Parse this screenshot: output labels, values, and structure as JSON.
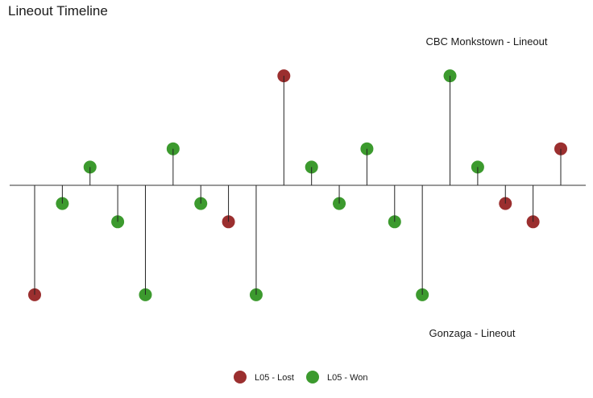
{
  "chart_data": {
    "type": "lollipop-timeline",
    "title": "Lineout Timeline",
    "annotations": {
      "top": "CBC Monkstown - Lineout",
      "bottom": "Gonzaga - Lineout"
    },
    "axis": {
      "visible_ticks": false,
      "grid": false,
      "ylim": [
        -3,
        3
      ]
    },
    "legend": {
      "placement": "bottom",
      "entries": [
        {
          "label": "L05 - Lost",
          "color": "#9b2f2f"
        },
        {
          "label": "L05 - Won",
          "color": "#3c9a2e"
        }
      ]
    },
    "colors": {
      "Lost": "#9b2f2f",
      "Won": "#3c9a2e"
    },
    "events": [
      {
        "team": "Gonzaga",
        "level": -3,
        "outcome": "Lost"
      },
      {
        "team": "Gonzaga",
        "level": -0.5,
        "outcome": "Won"
      },
      {
        "team": "CBC Monkstown",
        "level": 0.5,
        "outcome": "Won"
      },
      {
        "team": "Gonzaga",
        "level": -1,
        "outcome": "Won"
      },
      {
        "team": "Gonzaga",
        "level": -3,
        "outcome": "Won"
      },
      {
        "team": "CBC Monkstown",
        "level": 1,
        "outcome": "Won"
      },
      {
        "team": "Gonzaga",
        "level": -0.5,
        "outcome": "Won"
      },
      {
        "team": "Gonzaga",
        "level": -1,
        "outcome": "Lost"
      },
      {
        "team": "Gonzaga",
        "level": -3,
        "outcome": "Won"
      },
      {
        "team": "CBC Monkstown",
        "level": 3,
        "outcome": "Lost"
      },
      {
        "team": "CBC Monkstown",
        "level": 0.5,
        "outcome": "Won"
      },
      {
        "team": "Gonzaga",
        "level": -0.5,
        "outcome": "Won"
      },
      {
        "team": "CBC Monkstown",
        "level": 1,
        "outcome": "Won"
      },
      {
        "team": "Gonzaga",
        "level": -1,
        "outcome": "Won"
      },
      {
        "team": "Gonzaga",
        "level": -3,
        "outcome": "Won"
      },
      {
        "team": "CBC Monkstown",
        "level": 3,
        "outcome": "Won"
      },
      {
        "team": "CBC Monkstown",
        "level": 0.5,
        "outcome": "Won"
      },
      {
        "team": "Gonzaga",
        "level": -0.5,
        "outcome": "Lost"
      },
      {
        "team": "Gonzaga",
        "level": -1,
        "outcome": "Lost"
      },
      {
        "team": "CBC Monkstown",
        "level": 1,
        "outcome": "Lost"
      }
    ]
  }
}
